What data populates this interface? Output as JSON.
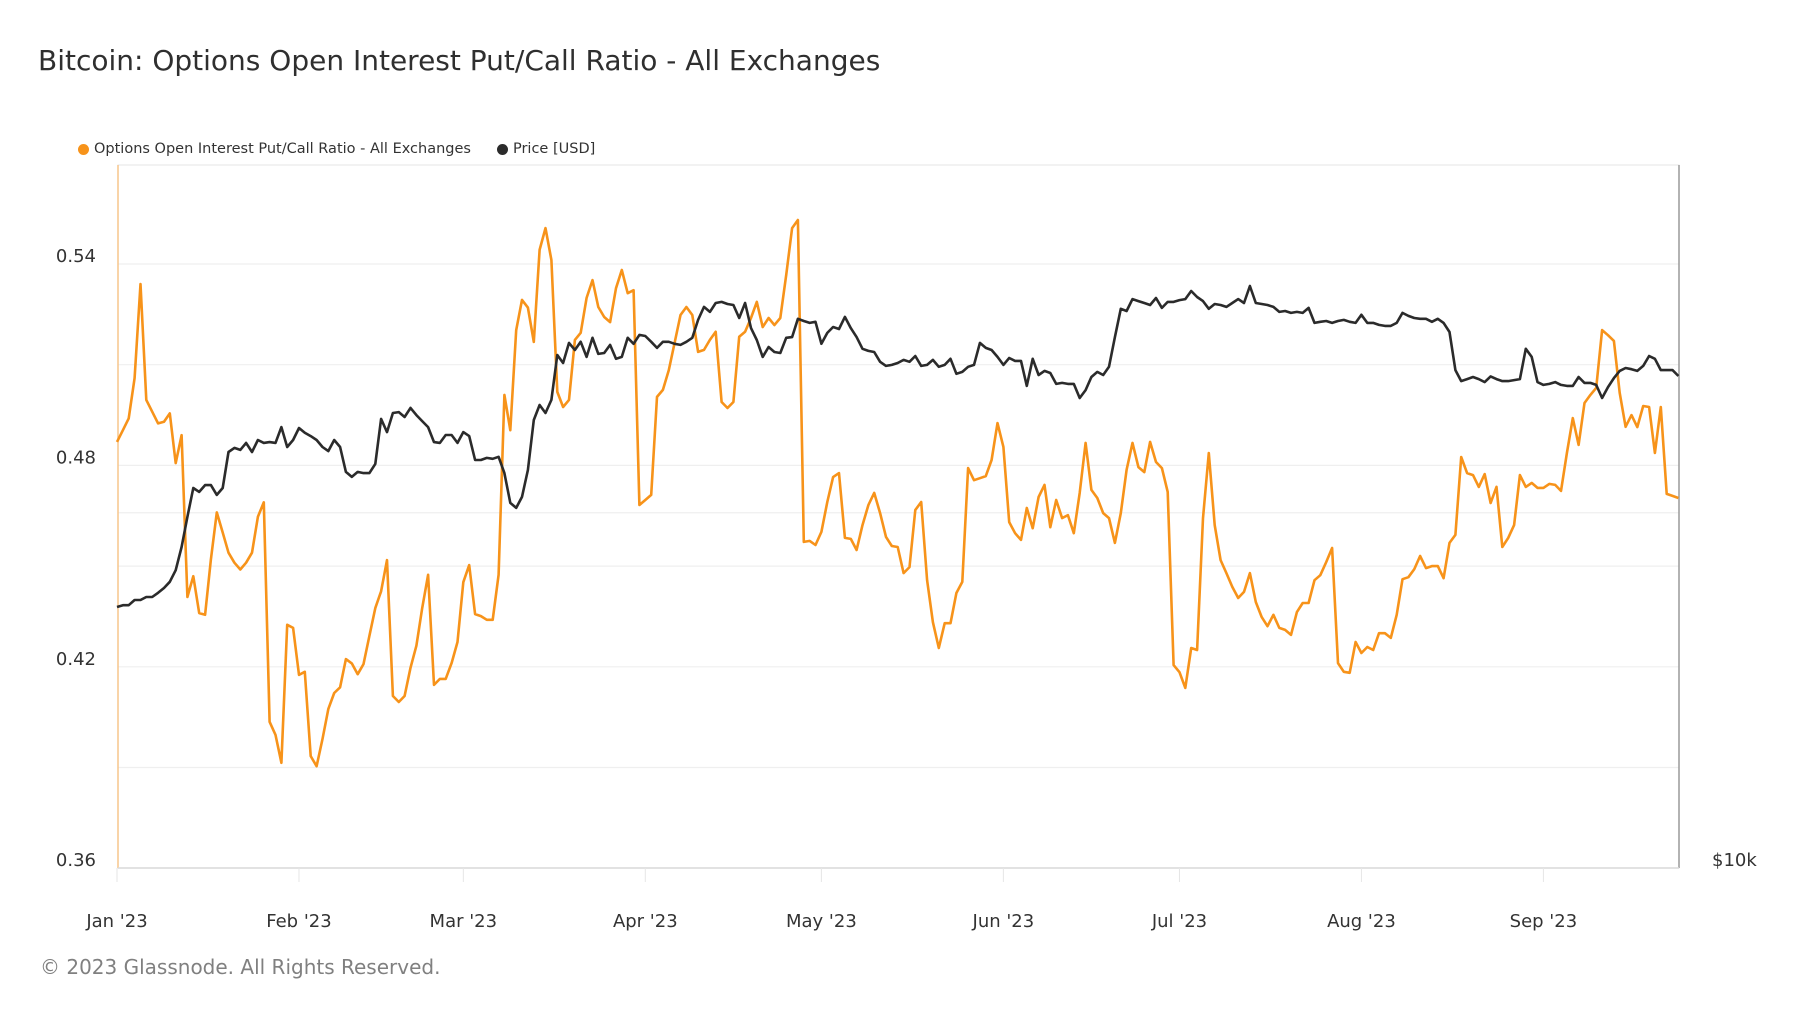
{
  "title": "Bitcoin: Options Open Interest Put/Call Ratio - All Exchanges",
  "footer": "© 2023 Glassnode. All Rights Reserved.",
  "colors": {
    "ratio": "#f7931a",
    "price": "#2b2b2b",
    "grid": "#efefef",
    "axis": "#d9d9d9"
  },
  "legend": [
    {
      "label": "Options Open Interest Put/Call Ratio - All Exchanges",
      "color": "#f7931a"
    },
    {
      "label": "Price [USD]",
      "color": "#2b2b2b"
    }
  ],
  "chart_data": {
    "type": "line",
    "title": "Bitcoin: Options Open Interest Put/Call Ratio - All Exchanges",
    "x_start": "2023-01-01",
    "x_step": "1 day",
    "x_ticks": [
      "Jan '23",
      "Feb '23",
      "Mar '23",
      "Apr '23",
      "May '23",
      "Jun '23",
      "Jul '23",
      "Aug '23",
      "Sep '23"
    ],
    "x_tick_days": [
      0,
      31,
      59,
      90,
      120,
      151,
      181,
      212,
      243
    ],
    "x_range_days": [
      0,
      266
    ],
    "y_left": {
      "ticks": [
        "0.54",
        "0.48",
        "0.42",
        "0.36"
      ],
      "tick_values": [
        0.54,
        0.48,
        0.42,
        0.36
      ],
      "range": [
        0.36,
        0.563
      ],
      "grid_step": 0.03
    },
    "y_right": {
      "scale": "log",
      "ticks": [
        "$10k"
      ],
      "tick_values": [
        10000
      ],
      "grid_values": [
        20000
      ]
    },
    "grid": true,
    "legend_position": "top-left",
    "series": [
      {
        "name": "Options Open Interest Put/Call Ratio - All Exchanges",
        "axis": "left",
        "values": [
          0.487,
          0.4905,
          0.494,
          0.506,
          0.534,
          0.4995,
          0.496,
          0.4925,
          0.493,
          0.4955,
          0.4807,
          0.489,
          0.4408,
          0.447,
          0.436,
          0.4355,
          0.452,
          0.466,
          0.46,
          0.454,
          0.451,
          0.449,
          0.451,
          0.454,
          0.4647,
          0.469,
          0.4036,
          0.3997,
          0.3914,
          0.4325,
          0.4316,
          0.4176,
          0.4185,
          0.3934,
          0.3904,
          0.3985,
          0.4074,
          0.4122,
          0.4139,
          0.4223,
          0.421,
          0.4178,
          0.4208,
          0.4292,
          0.4375,
          0.4425,
          0.4518,
          0.4113,
          0.4095,
          0.4113,
          0.4197,
          0.4263,
          0.4375,
          0.4474,
          0.4146,
          0.4164,
          0.4164,
          0.4211,
          0.4274,
          0.4452,
          0.4503,
          0.4357,
          0.4351,
          0.434,
          0.434,
          0.4474,
          0.501,
          0.4905,
          0.5203,
          0.5293,
          0.527,
          0.5168,
          0.5442,
          0.5507,
          0.5412,
          0.5019,
          0.4974,
          0.4995,
          0.5174,
          0.5195,
          0.5299,
          0.5352,
          0.5272,
          0.5242,
          0.5227,
          0.5328,
          0.5382,
          0.5313,
          0.5322,
          0.4682,
          0.4697,
          0.4712,
          0.5004,
          0.5025,
          0.5084,
          0.5165,
          0.5248,
          0.5272,
          0.5248,
          0.5138,
          0.5144,
          0.5174,
          0.5198,
          0.4989,
          0.4971,
          0.4989,
          0.5183,
          0.5198,
          0.5239,
          0.5287,
          0.5212,
          0.5239,
          0.5218,
          0.5239,
          0.5367,
          0.5507,
          0.5531,
          0.4572,
          0.4575,
          0.4563,
          0.4602,
          0.4691,
          0.4765,
          0.4777,
          0.4584,
          0.4581,
          0.4548,
          0.4622,
          0.4682,
          0.4718,
          0.4658,
          0.4587,
          0.456,
          0.4557,
          0.4479,
          0.4497,
          0.4667,
          0.4691,
          0.4458,
          0.4333,
          0.4256,
          0.433,
          0.433,
          0.442,
          0.4453,
          0.4792,
          0.4756,
          0.4762,
          0.4768,
          0.4816,
          0.4926,
          0.4855,
          0.4631,
          0.4598,
          0.4578,
          0.4673,
          0.4613,
          0.4706,
          0.4742,
          0.4616,
          0.4697,
          0.4643,
          0.4652,
          0.4598,
          0.4718,
          0.4867,
          0.4727,
          0.4703,
          0.4658,
          0.4643,
          0.4569,
          0.4658,
          0.4787,
          0.4867,
          0.4795,
          0.478,
          0.487,
          0.481,
          0.4792,
          0.4721,
          0.4205,
          0.4184,
          0.4137,
          0.4256,
          0.425,
          0.4643,
          0.4837,
          0.4622,
          0.4518,
          0.4479,
          0.4438,
          0.4405,
          0.4423,
          0.4479,
          0.4393,
          0.4348,
          0.4321,
          0.4355,
          0.4316,
          0.431,
          0.4295,
          0.4363,
          0.439,
          0.439,
          0.4458,
          0.4473,
          0.4512,
          0.4554,
          0.4211,
          0.4185,
          0.4182,
          0.4274,
          0.4241,
          0.4259,
          0.425,
          0.43,
          0.43,
          0.4286,
          0.4355,
          0.4461,
          0.4467,
          0.4491,
          0.453,
          0.4494,
          0.45,
          0.45,
          0.4464,
          0.4569,
          0.4593,
          0.4825,
          0.4777,
          0.4771,
          0.4736,
          0.4774,
          0.4688,
          0.4736,
          0.4557,
          0.4584,
          0.4622,
          0.4771,
          0.4736,
          0.4748,
          0.4733,
          0.4733,
          0.4745,
          0.4742,
          0.4724,
          0.4837,
          0.4941,
          0.4861,
          0.4986,
          0.501,
          0.5031,
          0.5203,
          0.5188,
          0.5171,
          0.5016,
          0.4915,
          0.495,
          0.4914,
          0.4977,
          0.4974,
          0.4837,
          0.4974,
          0.4715,
          0.4709,
          0.4703
        ]
      },
      {
        "name": "Price [USD]",
        "axis": "right",
        "values": [
          16640,
          16700,
          16700,
          16870,
          16870,
          16970,
          16970,
          17110,
          17270,
          17480,
          17880,
          18710,
          19840,
          20990,
          20830,
          21110,
          21110,
          20710,
          20990,
          22520,
          22700,
          22610,
          22920,
          22520,
          23050,
          22920,
          22960,
          22920,
          23640,
          22740,
          23050,
          23600,
          23380,
          23230,
          23050,
          22740,
          22560,
          23050,
          22740,
          21660,
          21450,
          21660,
          21610,
          21610,
          22000,
          24020,
          23410,
          24300,
          24340,
          24110,
          24540,
          24200,
          23920,
          23640,
          22960,
          22920,
          23280,
          23280,
          22920,
          23410,
          23230,
          22170,
          22170,
          22260,
          22220,
          22310,
          21610,
          20390,
          20190,
          20630,
          21740,
          23970,
          24680,
          24300,
          24930,
          27210,
          26790,
          27860,
          27480,
          27920,
          27110,
          28140,
          27270,
          27320,
          27750,
          27010,
          27110,
          28140,
          27810,
          28300,
          28240,
          27920,
          27590,
          27920,
          27920,
          27810,
          27750,
          27920,
          28140,
          29140,
          29890,
          29600,
          30120,
          30180,
          30060,
          30000,
          29250,
          30120,
          28680,
          28020,
          27110,
          27640,
          27370,
          27320,
          28140,
          28180,
          29200,
          29080,
          28970,
          29030,
          27810,
          28410,
          28740,
          28630,
          29310,
          28680,
          28180,
          27540,
          27430,
          27370,
          26850,
          26640,
          26690,
          26790,
          26950,
          26850,
          27160,
          26640,
          26690,
          26950,
          26590,
          26690,
          27010,
          26230,
          26330,
          26590,
          26690,
          27860,
          27590,
          27480,
          27110,
          26690,
          27050,
          26900,
          26900,
          25620,
          27010,
          26170,
          26380,
          26270,
          25720,
          25770,
          25720,
          25720,
          25020,
          25410,
          26070,
          26330,
          26170,
          26590,
          28180,
          29780,
          29650,
          30350,
          30230,
          30120,
          30000,
          30410,
          29830,
          30180,
          30180,
          30290,
          30350,
          30830,
          30470,
          30230,
          29780,
          30060,
          30000,
          29890,
          30120,
          30350,
          30120,
          31130,
          30120,
          30060,
          30000,
          29890,
          29600,
          29650,
          29540,
          29600,
          29540,
          29830,
          28970,
          29030,
          29080,
          28970,
          29080,
          29140,
          29030,
          28970,
          29430,
          28970,
          28970,
          28860,
          28800,
          28800,
          28970,
          29540,
          29370,
          29250,
          29200,
          29200,
          29030,
          29200,
          28970,
          28460,
          26420,
          25860,
          25960,
          26070,
          25960,
          25810,
          26100,
          25960,
          25860,
          25860,
          25910,
          25960,
          27540,
          27110,
          25810,
          25670,
          25720,
          25810,
          25670,
          25620,
          25620,
          26070,
          25770,
          25770,
          25670,
          25020,
          25560,
          26010,
          26380,
          26530,
          26470,
          26380,
          26640,
          27160,
          27010,
          26420,
          26420,
          26420,
          26120
        ]
      }
    ]
  }
}
